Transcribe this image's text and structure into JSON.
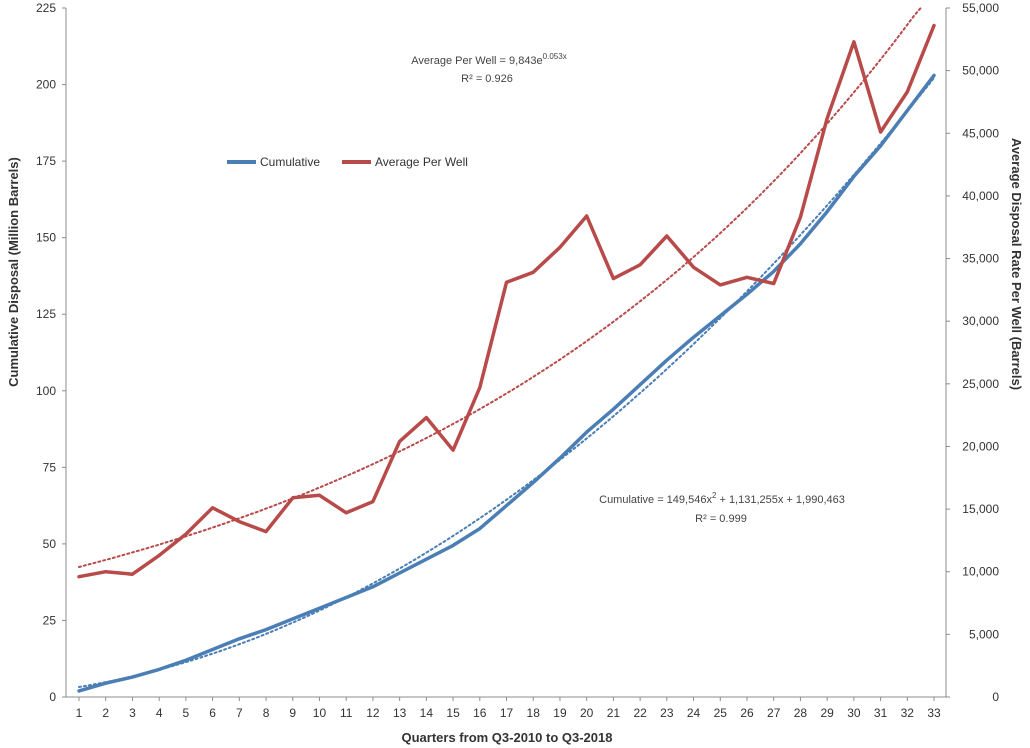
{
  "chart_data": {
    "type": "line",
    "x": [
      1,
      2,
      3,
      4,
      5,
      6,
      7,
      8,
      9,
      10,
      11,
      12,
      13,
      14,
      15,
      16,
      17,
      18,
      19,
      20,
      21,
      22,
      23,
      24,
      25,
      26,
      27,
      28,
      29,
      30,
      31,
      32,
      33
    ],
    "xlabel": "Quarters from Q3-2010 to Q3-2018",
    "ylabel_left": "Cumulative Disposal (Million Barrels)",
    "ylabel_right": "Average Disposal Rate Per Well (Barrels)",
    "ylim_left": [
      0,
      225
    ],
    "ylim_right": [
      0,
      55000
    ],
    "yticks_left": [
      0,
      25,
      50,
      75,
      100,
      125,
      150,
      175,
      200,
      225
    ],
    "yticks_right": [
      0,
      5000,
      10000,
      15000,
      20000,
      25000,
      30000,
      35000,
      40000,
      45000,
      50000,
      55000
    ],
    "yticks_right_labels": [
      "0",
      "5,000",
      "10,000",
      "15,000",
      "20,000",
      "25,000",
      "30,000",
      "35,000",
      "40,000",
      "45,000",
      "50,000",
      "55,000"
    ],
    "grid": false,
    "legend_position": "upper-left",
    "series": [
      {
        "name": "Cumulative",
        "axis": "left",
        "color": "#4a7eb5",
        "values": [
          2,
          4.5,
          6.5,
          9,
          12,
          15.5,
          19,
          22,
          25.5,
          29,
          32.5,
          36,
          40.5,
          45,
          49.5,
          55,
          62.5,
          70,
          78,
          86.5,
          94,
          102,
          110,
          117.5,
          124.5,
          131.5,
          139,
          148,
          158.5,
          170,
          180,
          191.5,
          203
        ]
      },
      {
        "name": "Average Per Well",
        "axis": "right",
        "color": "#b84a4a",
        "values": [
          9600,
          10000,
          9800,
          11300,
          13000,
          15100,
          14000,
          13200,
          15900,
          16100,
          14700,
          15600,
          20400,
          22300,
          19700,
          24700,
          33100,
          33900,
          35900,
          38400,
          33400,
          34500,
          36800,
          34300,
          32900,
          33500,
          33000,
          38300,
          46200,
          52300,
          45100,
          48300,
          53600
        ]
      }
    ],
    "trendlines": [
      {
        "series": "Cumulative",
        "kind": "polynomial",
        "color": "#4a7eb5",
        "a": 149546,
        "b": 1131255,
        "c": 1990463,
        "scale": 1000000
      },
      {
        "series": "Average Per Well",
        "kind": "exponential",
        "color": "#b84a4a",
        "a": 9843,
        "k": 0.053
      }
    ],
    "annotations": {
      "avg_eq_main": "Average Per Well = 9,843e",
      "avg_eq_sup": "0.053x",
      "avg_r2": "R² = 0.926",
      "cum_eq_a": "Cumulative = 149,546x",
      "cum_eq_sup": "2",
      "cum_eq_b": " + 1,131,255x  + 1,990,463",
      "cum_r2": "R² = 0.999"
    }
  }
}
